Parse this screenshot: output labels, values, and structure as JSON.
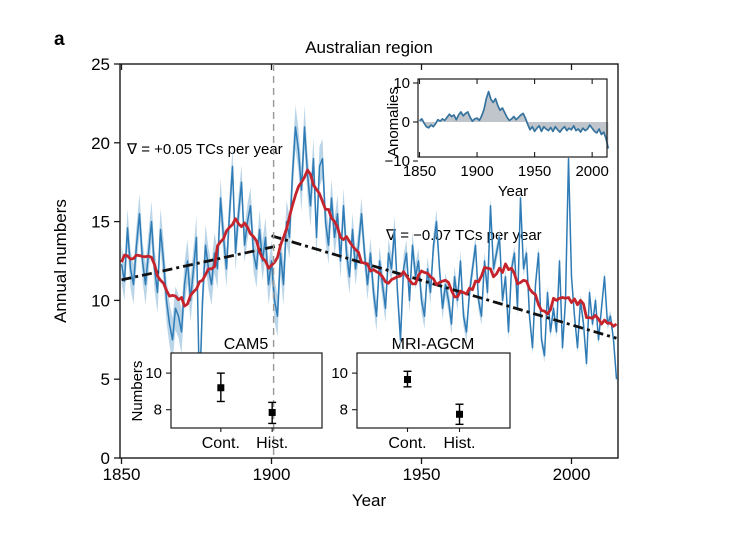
{
  "panel_label": "a",
  "colors": {
    "annual_line": "#2e7bb5",
    "uncertainty_band": "#a9cbe2",
    "smoothed_line": "#c6242c",
    "trend_line": "#111111",
    "reference_line": "#999999",
    "anomaly_fill": "#bfc5cb",
    "anomaly_line": "#35729e",
    "axis": "#1a1a1a"
  },
  "chart_data": {
    "main": {
      "type": "line",
      "title": "Australian region",
      "xlabel": "Year",
      "ylabel": "Annual numbers",
      "xlim": [
        1849.5,
        2015.5
      ],
      "ylim": [
        0,
        25
      ],
      "xticks": [
        1850,
        1900,
        1950,
        2000
      ],
      "yticks": [
        0,
        5,
        10,
        15,
        20,
        25
      ],
      "grid": false,
      "start_year": 1850,
      "annual_values": [
        12.3,
        11.2,
        14.6,
        12.0,
        11.0,
        13.5,
        15.5,
        12.5,
        11.0,
        13.0,
        15.0,
        12.0,
        10.5,
        14.5,
        12.5,
        10.0,
        8.5,
        7.5,
        9.5,
        9.0,
        8.0,
        11.0,
        12.5,
        10.0,
        12.0,
        14.0,
        4.0,
        10.0,
        13.5,
        12.0,
        11.0,
        13.0,
        12.0,
        16.5,
        14.0,
        12.0,
        15.5,
        18.5,
        13.0,
        15.5,
        17.5,
        13.5,
        15.0,
        16.0,
        13.0,
        12.0,
        14.5,
        12.5,
        14.0,
        11.0,
        12.5,
        10.0,
        9.0,
        13.0,
        11.0,
        15.0,
        14.0,
        18.0,
        21.0,
        19.5,
        17.0,
        21.0,
        18.0,
        16.0,
        19.0,
        14.0,
        18.5,
        19.0,
        15.0,
        13.5,
        16.5,
        14.0,
        15.5,
        12.5,
        16.0,
        13.0,
        11.5,
        14.5,
        12.0,
        13.5,
        15.5,
        13.0,
        11.0,
        13.0,
        10.5,
        9.0,
        12.5,
        11.0,
        9.5,
        13.0,
        12.0,
        14.5,
        10.5,
        7.5,
        12.0,
        13.0,
        10.0,
        13.5,
        11.5,
        12.5,
        10.0,
        9.0,
        12.0,
        10.5,
        13.5,
        15.0,
        12.0,
        9.5,
        11.0,
        10.0,
        8.5,
        11.5,
        10.0,
        12.5,
        9.0,
        8.0,
        10.5,
        12.0,
        13.5,
        10.0,
        9.0,
        12.5,
        10.5,
        16.0,
        12.0,
        13.0,
        14.0,
        10.0,
        11.5,
        8.0,
        12.0,
        13.0,
        9.5,
        16.5,
        12.0,
        13.0,
        9.0,
        7.0,
        11.0,
        13.0,
        7.5,
        6.5,
        10.5,
        8.0,
        9.5,
        8.0,
        12.5,
        7.0,
        10.0,
        19.0,
        11.5,
        9.0,
        7.0,
        10.0,
        8.5,
        6.0,
        10.5,
        8.5,
        10.0,
        7.5,
        9.5,
        11.5,
        8.5,
        9.0,
        7.5,
        5.0
      ],
      "smoothed_series": {
        "name": "smoothed (11-yr running mean)",
        "derived_from": "annual_values",
        "window": 11
      },
      "band_halfwidth_decades": [
        1.2,
        1.3,
        1.4,
        1.3,
        1.1,
        1.3,
        1.4,
        1.2,
        1.0,
        0.9,
        0.8,
        0.7,
        0.6,
        0.5,
        0.45,
        0.4,
        0.35
      ],
      "trend_lines": [
        {
          "x": [
            1850,
            1903
          ],
          "y": [
            11.3,
            13.5
          ],
          "label": "∇ = +0.05 TCs per year"
        },
        {
          "x": [
            1900,
            2015
          ],
          "y": [
            14.1,
            7.6
          ],
          "label": "∇ = −0.07 TCs per year"
        }
      ],
      "vline_year": 1900.7
    },
    "anomalies_inset": {
      "type": "area",
      "ylabel": "Anomalies",
      "xlabel": "Year",
      "xlim": [
        1848.5,
        2014.5
      ],
      "ylim": [
        -10,
        10
      ],
      "xticks": [
        1850,
        1900,
        1950,
        2000
      ],
      "yticks": [
        -10,
        0,
        10
      ],
      "x_start": 1850,
      "x_step": 2,
      "values": [
        0.3,
        0.8,
        -0.3,
        -1.2,
        -1.5,
        -0.8,
        -1.2,
        -0.4,
        0.6,
        0.2,
        0.8,
        0.4,
        1.2,
        2.0,
        1.4,
        1.8,
        0.6,
        1.8,
        2.6,
        1.6,
        2.2,
        2.6,
        1.2,
        0.2,
        0.8,
        1.0,
        0.4,
        1.6,
        3.2,
        6.0,
        7.8,
        5.8,
        5.0,
        6.0,
        4.2,
        3.0,
        3.6,
        2.4,
        1.2,
        0.4,
        0.8,
        1.4,
        0.6,
        1.2,
        1.8,
        2.2,
        1.0,
        -0.6,
        -2.0,
        -1.2,
        -2.4,
        -1.6,
        -1.0,
        -2.4,
        -1.2,
        -1.8,
        -2.2,
        -1.4,
        -2.4,
        -1.2,
        -2.0,
        -2.6,
        -1.8,
        -1.2,
        -2.2,
        -1.6,
        -2.0,
        -1.0,
        -2.2,
        -1.8,
        -2.6,
        -1.6,
        -2.2,
        -1.8,
        -0.8,
        -1.6,
        -2.4,
        -2.8,
        -1.8,
        -3.2,
        -2.6,
        -4.2,
        -6.8
      ]
    },
    "model_insets": {
      "ylabel": "Numbers",
      "yticks": [
        8,
        10
      ],
      "ylim": [
        7.0,
        11.1
      ],
      "panels": [
        {
          "title": "CAM5",
          "categories": [
            "Cont.",
            "Hist."
          ],
          "values": [
            9.2,
            7.85
          ],
          "err_low": [
            8.45,
            7.25
          ],
          "err_high": [
            10.0,
            8.4
          ]
        },
        {
          "title": "MRI-AGCM",
          "categories": [
            "Cont.",
            "Hist."
          ],
          "values": [
            9.65,
            7.75
          ],
          "err_low": [
            9.25,
            7.2
          ],
          "err_high": [
            10.1,
            8.3
          ]
        }
      ]
    }
  }
}
